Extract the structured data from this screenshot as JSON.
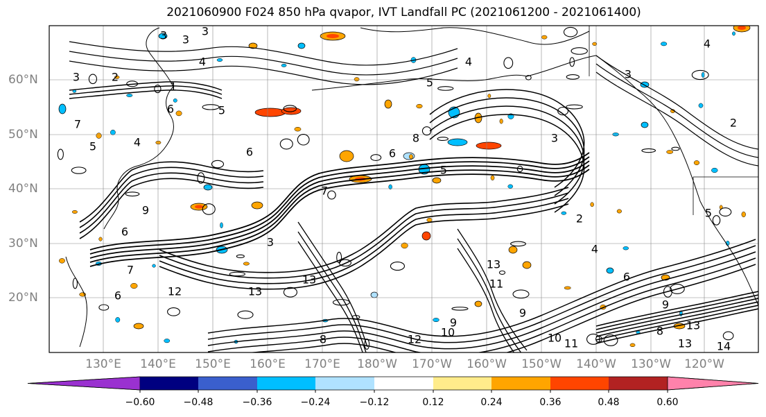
{
  "title": "2021060900 F024 850 hPa qvapor, IVT Landfall PC (2021061200 - 2021061400)",
  "lat_labels": [
    "60°N",
    "50°N",
    "40°N",
    "30°N",
    "20°N"
  ],
  "lon_labels": [
    "130°E",
    "140°E",
    "150°E",
    "160°E",
    "170°E",
    "180°W",
    "170°W",
    "160°W",
    "150°W",
    "140°W",
    "130°W",
    "120°W"
  ],
  "colorbar": {
    "colors": [
      "#9a31d0",
      "#000080",
      "#3a5fcd",
      "#00bfff",
      "#b0e2ff",
      "#ffffff",
      "#ffec8b",
      "#ffa500",
      "#ff4500",
      "#b22222",
      "#ff82ab"
    ],
    "tick_labels": [
      "−0.60",
      "−0.48",
      "−0.36",
      "−0.24",
      "−0.12",
      "0.12",
      "0.24",
      "0.36",
      "0.48",
      "0.60"
    ]
  },
  "contour_labels": [
    "3",
    "3",
    "3",
    "4",
    "3",
    "2",
    "5",
    "4",
    "3",
    "2",
    "1",
    "6",
    "5",
    "7",
    "6",
    "8",
    "4",
    "5",
    "6",
    "7",
    "5",
    "9",
    "6",
    "3",
    "7",
    "6",
    "12",
    "13",
    "13",
    "13",
    "11",
    "9",
    "8",
    "10",
    "11",
    "12",
    "10",
    "9",
    "8",
    "13",
    "14",
    "13",
    "9",
    "6",
    "4",
    "5",
    "2",
    "3",
    "4"
  ],
  "colors": {
    "contour": "#000000",
    "grid": "#888888",
    "coast": "#000000"
  }
}
